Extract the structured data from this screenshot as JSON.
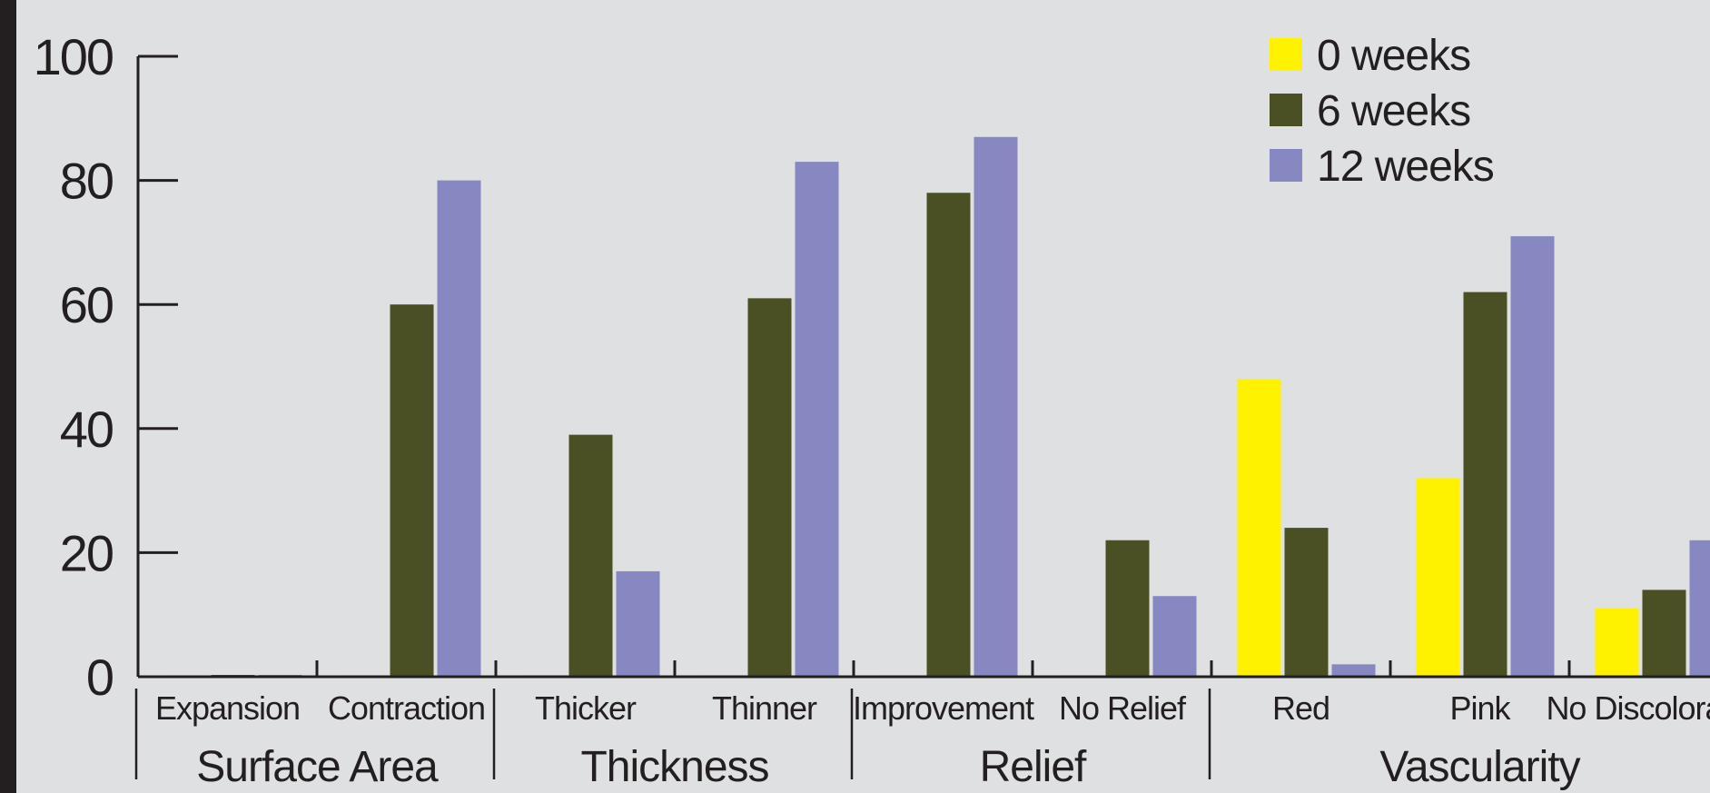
{
  "chart_data": {
    "type": "bar",
    "ylim": [
      0,
      100
    ],
    "yticks": [
      0,
      20,
      40,
      60,
      80,
      100
    ],
    "legend_position": "top-right",
    "categories": [
      "Expansion",
      "Contraction",
      "Thicker",
      "Thinner",
      "Improvement",
      "No Relief",
      "Red",
      "Pink",
      "No Discoloration"
    ],
    "groups": [
      {
        "label": "Surface Area",
        "categories": [
          "Expansion",
          "Contraction"
        ]
      },
      {
        "label": "Thickness",
        "categories": [
          "Thicker",
          "Thinner"
        ]
      },
      {
        "label": "Relief",
        "categories": [
          "Improvement",
          "No Relief"
        ]
      },
      {
        "label": "Vascularity",
        "categories": [
          "Red",
          "Pink",
          "No Discoloration"
        ]
      }
    ],
    "series": [
      {
        "name": "0 weeks",
        "color": "#fff200",
        "values": [
          0,
          0,
          0,
          0,
          0,
          0,
          48,
          32,
          11
        ]
      },
      {
        "name": "6 weeks",
        "color": "#4a5024",
        "values": [
          0,
          60,
          39,
          61,
          78,
          22,
          24,
          62,
          14
        ]
      },
      {
        "name": "12 weeks",
        "color": "#8788c1",
        "values": [
          0,
          80,
          17,
          83,
          87,
          13,
          2,
          71,
          22
        ]
      }
    ]
  }
}
